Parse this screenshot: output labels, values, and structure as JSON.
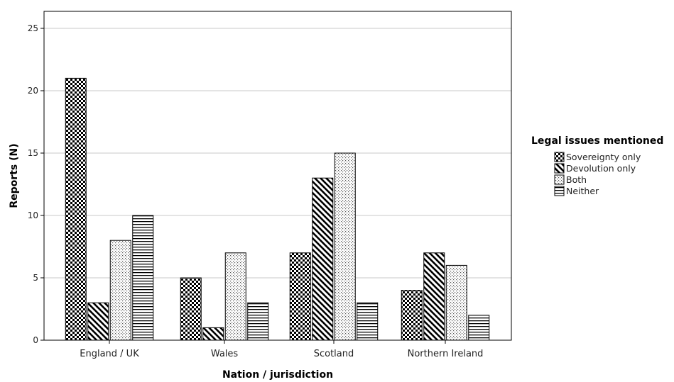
{
  "chart_data": {
    "type": "bar",
    "title": "",
    "xlabel": "Nation / jurisdiction",
    "ylabel": "Reports (N)",
    "ylim": [
      0,
      26
    ],
    "yticks": [
      0,
      5,
      10,
      15,
      20,
      25
    ],
    "grid": true,
    "legend_title": "Legal issues mentioned",
    "legend_position": "right",
    "categories": [
      "England / UK",
      "Wales",
      "Scotland",
      "Northern Ireland"
    ],
    "series": [
      {
        "name": "Sovereignty only",
        "values": [
          21,
          5,
          7,
          4
        ],
        "pattern": "checker"
      },
      {
        "name": "Devolution only",
        "values": [
          3,
          1,
          13,
          7
        ],
        "pattern": "diagonal"
      },
      {
        "name": "Both",
        "values": [
          8,
          7,
          15,
          6
        ],
        "pattern": "dots"
      },
      {
        "name": "Neither",
        "values": [
          10,
          3,
          3,
          2
        ],
        "pattern": "horizontal"
      }
    ],
    "colors": {
      "stroke": "#000000",
      "grid": "#c8c8c8",
      "fill": "#ffffff"
    }
  }
}
